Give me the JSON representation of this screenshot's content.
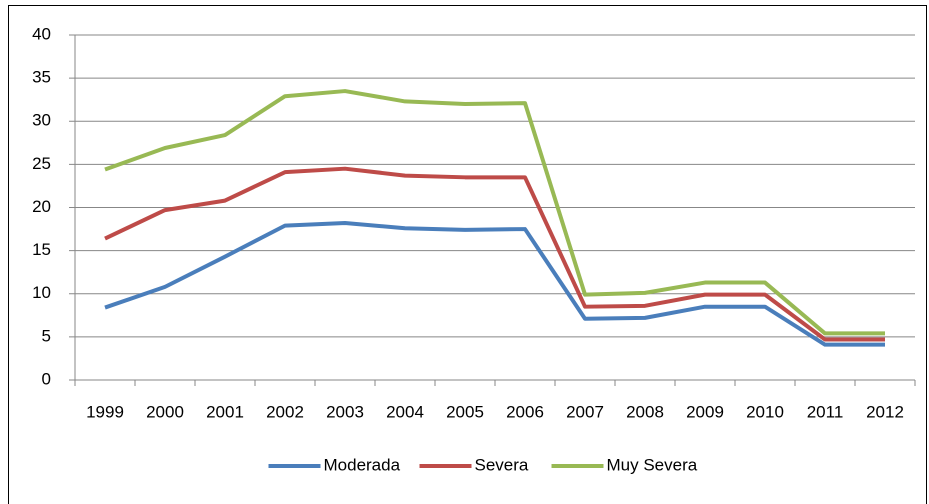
{
  "chart_data": {
    "type": "line",
    "categories": [
      "1999",
      "2000",
      "2001",
      "2002",
      "2003",
      "2004",
      "2005",
      "2006",
      "2007",
      "2008",
      "2009",
      "2010",
      "2011",
      "2012"
    ],
    "series": [
      {
        "name": "Moderada",
        "color": "#4a7ebb",
        "values": [
          8.4,
          10.8,
          14.3,
          17.9,
          18.2,
          17.6,
          17.4,
          17.5,
          7.1,
          7.2,
          8.5,
          8.5,
          4.1,
          4.1
        ]
      },
      {
        "name": "Severa",
        "color": "#be4b48",
        "values": [
          16.4,
          19.7,
          20.8,
          24.1,
          24.5,
          23.7,
          23.5,
          23.5,
          8.5,
          8.6,
          9.9,
          9.9,
          4.7,
          4.7
        ]
      },
      {
        "name": "Muy Severa",
        "color": "#98b954",
        "values": [
          24.4,
          26.9,
          28.4,
          32.9,
          33.5,
          32.3,
          32.0,
          32.1,
          9.9,
          10.1,
          11.3,
          11.3,
          5.4,
          5.4
        ]
      }
    ],
    "ylim": [
      0,
      40
    ],
    "yticks": [
      0,
      5,
      10,
      15,
      20,
      25,
      30,
      35,
      40
    ],
    "grid": true,
    "legend": "bottom"
  }
}
